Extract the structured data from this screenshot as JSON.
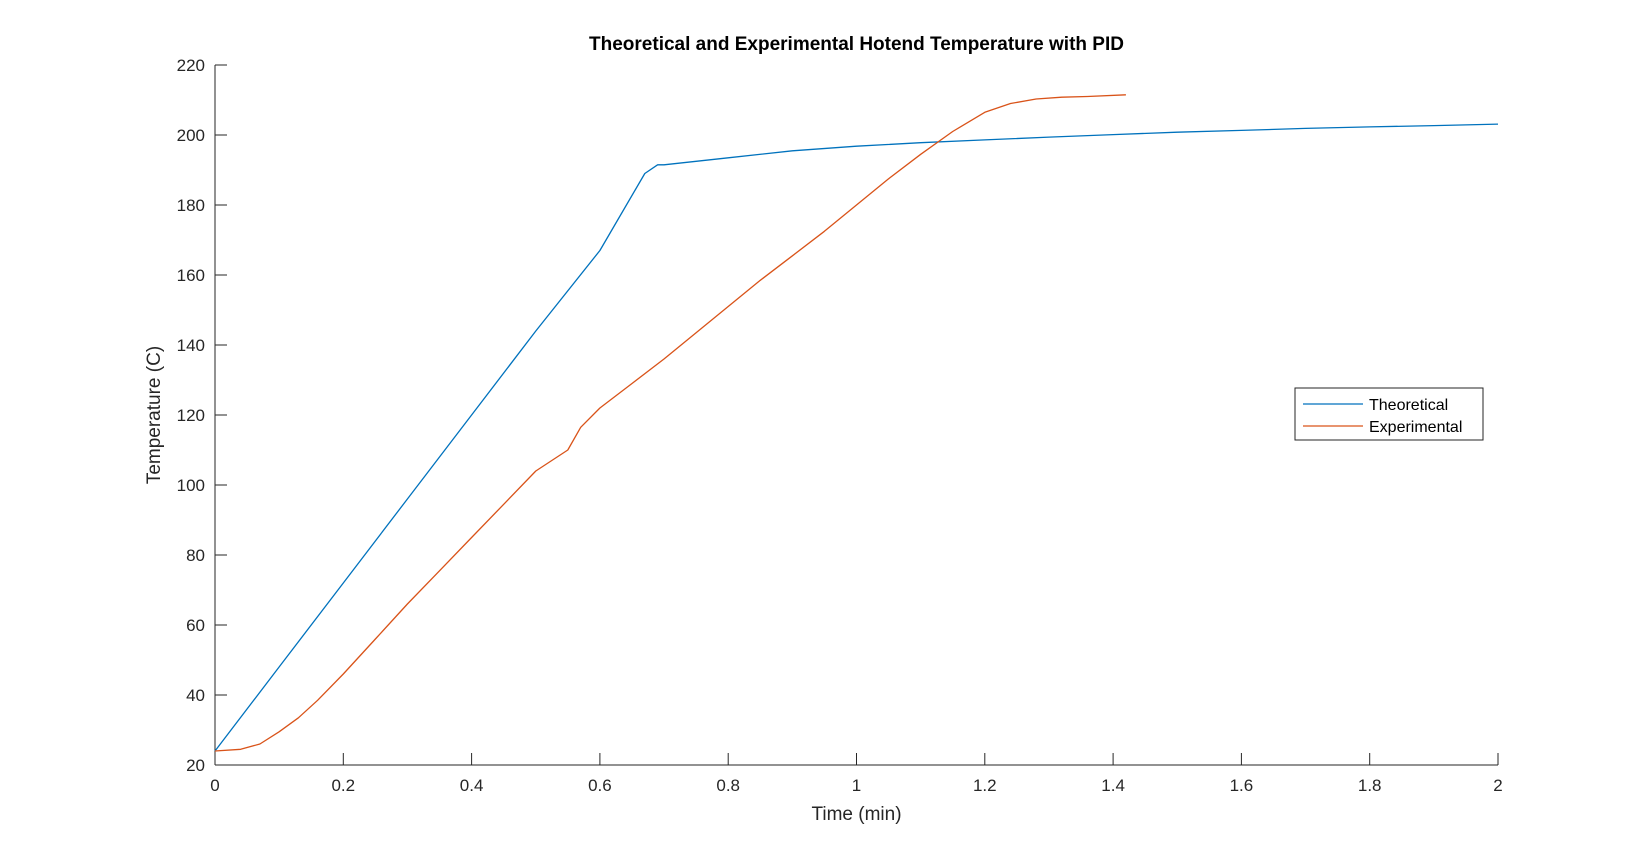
{
  "chart_data": {
    "type": "line",
    "title": "Theoretical and Experimental Hotend Temperature with PID",
    "xlabel": "Time (min)",
    "ylabel": "Temperature (C)",
    "xlim": [
      0,
      2
    ],
    "ylim": [
      20,
      220
    ],
    "xticks": [
      0,
      0.2,
      0.4,
      0.6,
      0.8,
      1,
      1.2,
      1.4,
      1.6,
      1.8,
      2
    ],
    "xtick_labels": [
      "0",
      "0.2",
      "0.4",
      "0.6",
      "0.8",
      "1",
      "1.2",
      "1.4",
      "1.6",
      "1.8",
      "2"
    ],
    "yticks": [
      20,
      40,
      60,
      80,
      100,
      120,
      140,
      160,
      180,
      200,
      220
    ],
    "ytick_labels": [
      "20",
      "40",
      "60",
      "80",
      "100",
      "120",
      "140",
      "160",
      "180",
      "200",
      "220"
    ],
    "grid": false,
    "legend_position": "right",
    "series": [
      {
        "name": "Theoretical",
        "color": "#0072BD",
        "x": [
          0,
          0.1,
          0.2,
          0.3,
          0.4,
          0.5,
          0.6,
          0.67,
          0.69,
          0.7,
          0.75,
          0.8,
          0.9,
          1.0,
          1.1,
          1.2,
          1.3,
          1.4,
          1.5,
          1.6,
          1.7,
          1.8,
          1.9,
          2.0
        ],
        "y": [
          24,
          48,
          72,
          96,
          120,
          144,
          167,
          189,
          191.5,
          191.5,
          192.5,
          193.5,
          195.5,
          196.8,
          197.8,
          198.6,
          199.4,
          200.1,
          200.8,
          201.3,
          201.9,
          202.3,
          202.7,
          203.1
        ]
      },
      {
        "name": "Experimental",
        "color": "#D95319",
        "x": [
          0,
          0.04,
          0.07,
          0.1,
          0.13,
          0.16,
          0.2,
          0.25,
          0.3,
          0.35,
          0.4,
          0.45,
          0.5,
          0.55,
          0.57,
          0.6,
          0.65,
          0.7,
          0.75,
          0.8,
          0.85,
          0.9,
          0.95,
          1.0,
          1.05,
          1.1,
          1.15,
          1.2,
          1.24,
          1.28,
          1.32,
          1.36,
          1.42
        ],
        "y": [
          24,
          24.5,
          26,
          29.5,
          33.5,
          38.5,
          46,
          56,
          66,
          75.5,
          85,
          94.5,
          104,
          110,
          116.5,
          122,
          129,
          136,
          143.5,
          151,
          158.5,
          165.5,
          172.5,
          180,
          187.5,
          194.5,
          201,
          206.5,
          209,
          210.3,
          210.8,
          211,
          211.5
        ]
      }
    ]
  }
}
